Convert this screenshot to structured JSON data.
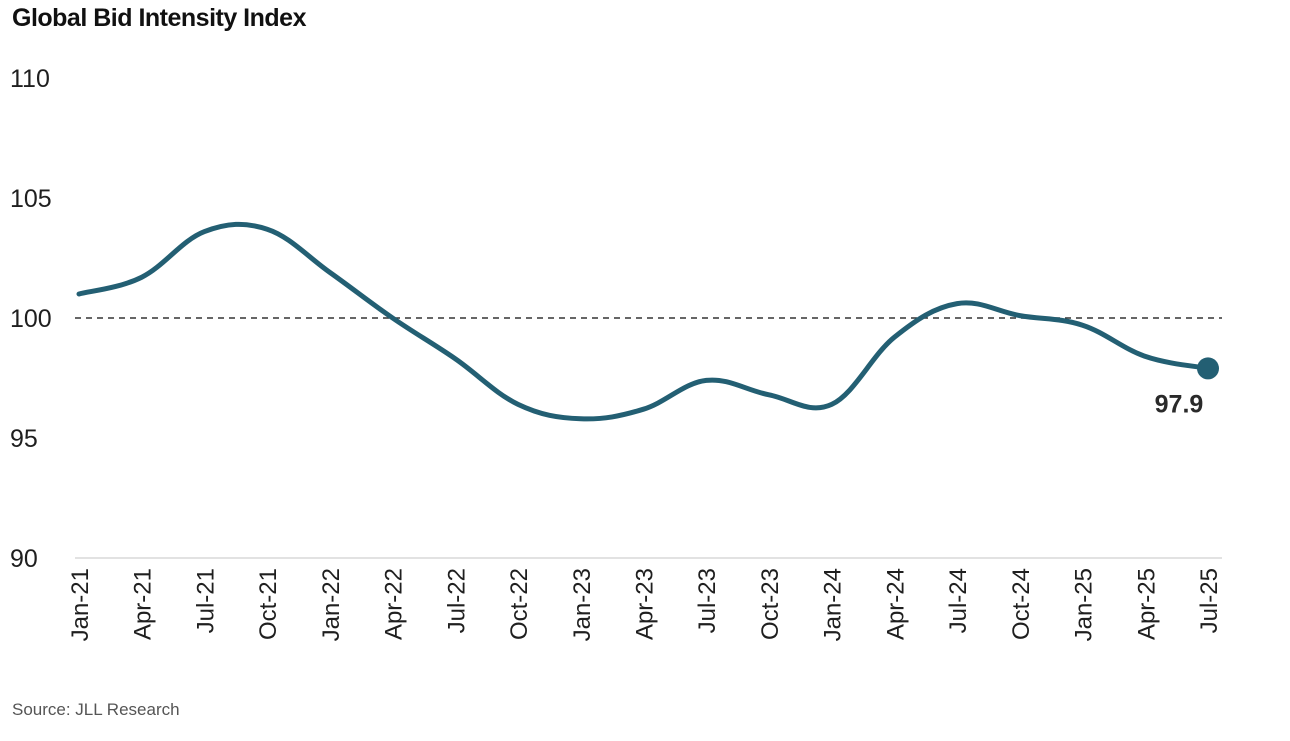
{
  "header": {
    "title": "Global Bid Intensity Index"
  },
  "footer": {
    "source": "Source: JLL Research"
  },
  "colors": {
    "line": "#235f73",
    "reference_line": "#333333",
    "axis": "#e2e2e2"
  },
  "chart_data": {
    "type": "line",
    "title": "Global Bid Intensity Index",
    "xlabel": "",
    "ylabel": "",
    "ylim": [
      90,
      110
    ],
    "yticks": [
      90,
      95,
      100,
      105,
      110
    ],
    "grid": false,
    "reference_line": 100,
    "x": [
      "Jan-21",
      "Apr-21",
      "Jul-21",
      "Oct-21",
      "Jan-22",
      "Apr-22",
      "Jul-22",
      "Oct-22",
      "Jan-23",
      "Apr-23",
      "Jul-23",
      "Oct-23",
      "Jan-24",
      "Apr-24",
      "Jul-24",
      "Oct-24",
      "Jan-25",
      "Apr-25",
      "Jul-25"
    ],
    "series": [
      {
        "values": [
          101.0,
          101.7,
          103.6,
          103.7,
          101.9,
          100.0,
          98.3,
          96.4,
          95.8,
          96.2,
          97.4,
          96.8,
          96.4,
          99.2,
          100.6,
          100.1,
          99.7,
          98.4,
          97.9
        ]
      }
    ],
    "annotations": [
      {
        "x": "Jul-25",
        "value": 97.9,
        "label": "97.9"
      }
    ]
  }
}
